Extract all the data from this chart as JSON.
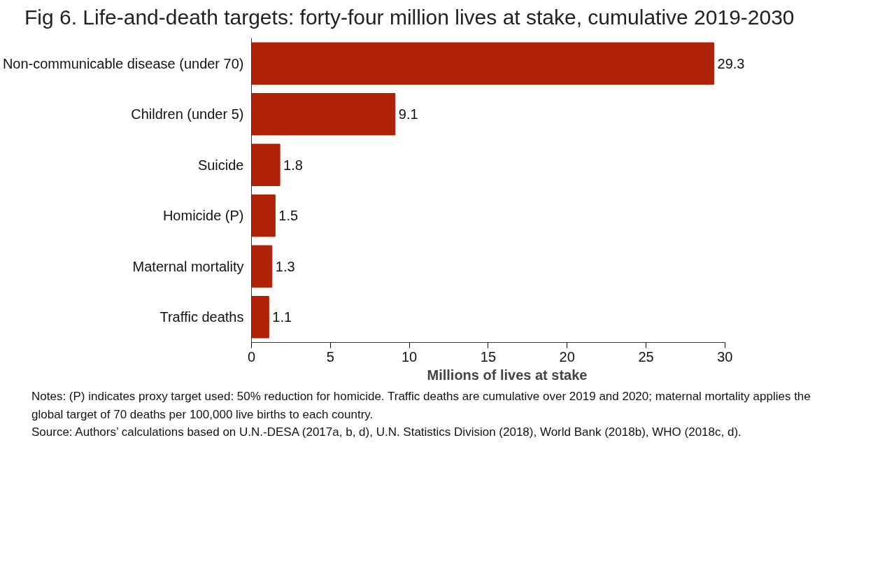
{
  "chart_data": {
    "type": "bar",
    "orientation": "horizontal",
    "title": "Fig 6. Life-and-death targets: forty-four million lives at stake, cumulative 2019-2030",
    "xlabel": "Millions of lives at stake",
    "categories": [
      "Non-communicable disease (under 70)",
      "Children (under 5)",
      "Suicide",
      "Homicide (P)",
      "Maternal mortality",
      "Traffic deaths"
    ],
    "values": [
      29.3,
      9.1,
      1.8,
      1.5,
      1.3,
      1.1
    ],
    "color": "#b02208",
    "xlim": [
      0,
      30
    ],
    "xticks": [
      0,
      5,
      10,
      15,
      20,
      25,
      30
    ],
    "grid": false,
    "data_labels": true,
    "annotations": [
      "Notes: (P) indicates proxy target used: 50% reduction for homicide. Traffic deaths are cumulative over 2019 and 2020; maternal mortality applies the global target of 70 deaths per 100,000 live births to each country.",
      "Source: Authors’ calculations based on U.N.-DESA (2017a, b, d), U.N. Statistics Division (2018), World Bank (2018b), WHO (2018c, d)."
    ]
  }
}
